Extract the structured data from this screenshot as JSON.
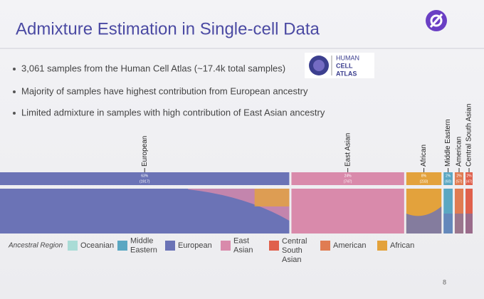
{
  "title": "Admixture Estimation in Single-cell Data",
  "bullets": [
    "3,061 samples from the Human Cell Atlas (~17.4k total samples)",
    "Majority of samples have highest contribution from European ancestry",
    "Limited admixture in samples with high contribution of East Asian ancestry"
  ],
  "logo_text": [
    "HUMAN",
    "CELL",
    "ATLAS"
  ],
  "groups": [
    {
      "label": "European",
      "percent_label": "63%",
      "count_label": "(1917)",
      "count": 1917,
      "color": "#6b73b6"
    },
    {
      "label": "East Asian",
      "percent_label": "24%",
      "count_label": "(747)",
      "count": 747,
      "color": "#d98aab"
    },
    {
      "label": "African",
      "percent_label": "8%",
      "count_label": "(233)",
      "count": 233,
      "color": "#e3a23c"
    },
    {
      "label": "Middle Eastern",
      "percent_label": "2%",
      "count_label": "(60)",
      "count": 60,
      "color": "#5aa7c2"
    },
    {
      "label": "American",
      "percent_label": "2%",
      "count_label": "(57)",
      "count": 57,
      "color": "#e07c52"
    },
    {
      "label": "Central South Asian",
      "percent_label": "2%",
      "count_label": "(47)",
      "count": 47,
      "color": "#e0604c"
    }
  ],
  "legend": {
    "title": "Ancestral Region",
    "items": [
      {
        "lines": [
          "Oceanian"
        ],
        "color": "#a9dcd6"
      },
      {
        "lines": [
          "Middle",
          "Eastern"
        ],
        "color": "#5aa7c2"
      },
      {
        "lines": [
          "European"
        ],
        "color": "#6b73b6"
      },
      {
        "lines": [
          "East",
          "Asian"
        ],
        "color": "#d98aab"
      },
      {
        "lines": [
          "Central",
          "South",
          "Asian"
        ],
        "color": "#e0604c"
      },
      {
        "lines": [
          "American"
        ],
        "color": "#e07c52"
      },
      {
        "lines": [
          "African"
        ],
        "color": "#e3a23c"
      }
    ]
  },
  "page_number": "8"
}
